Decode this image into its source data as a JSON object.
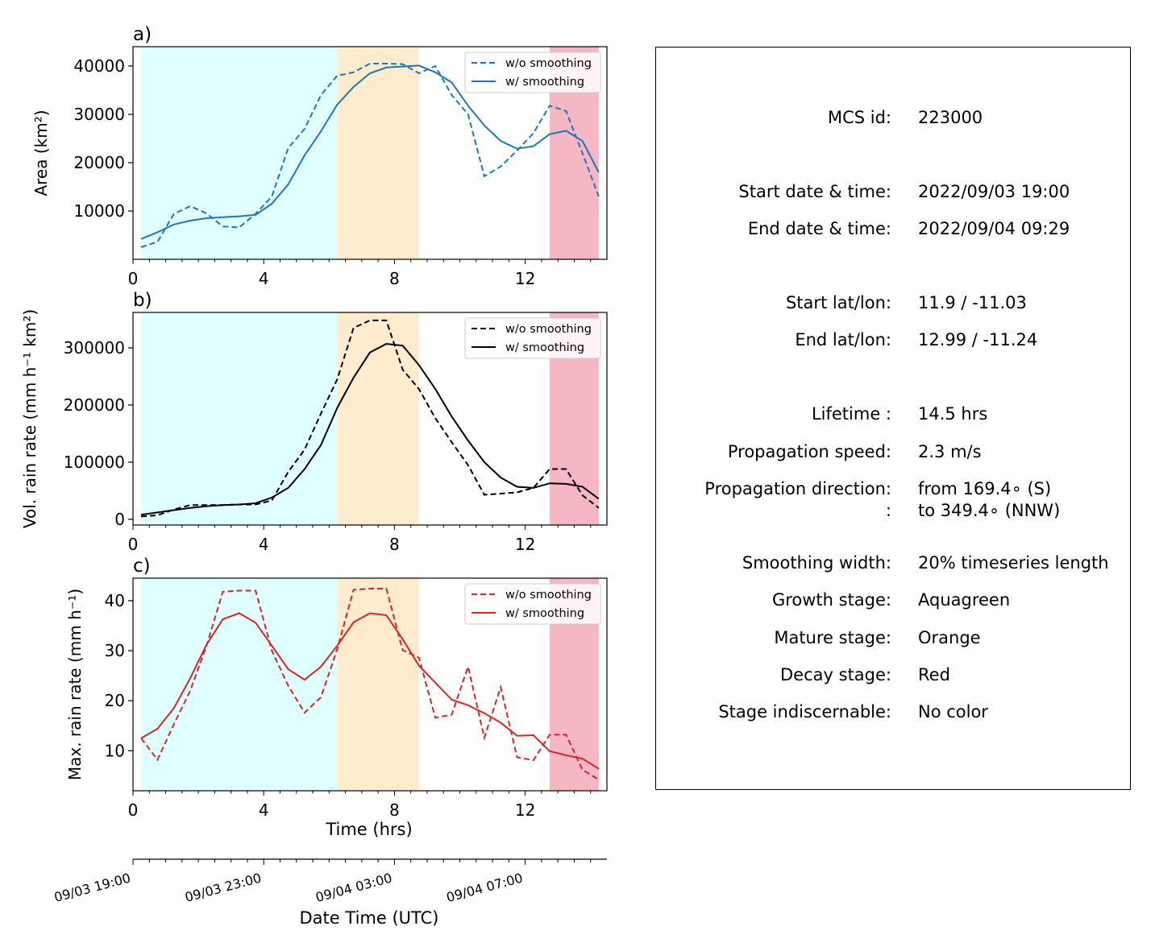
{
  "panels": [
    {
      "label": "a)",
      "ylabel_html": "Area  (km²)",
      "ylim": [
        0,
        44000
      ],
      "yticks": [
        10000,
        20000,
        30000,
        40000
      ],
      "line_color": "#1f77b4",
      "legend": [
        "w/o smoothing",
        "w/ smoothing"
      ],
      "raw": [
        2500,
        3600,
        9400,
        11000,
        9500,
        6800,
        6600,
        9400,
        13000,
        23000,
        27000,
        34000,
        38000,
        38700,
        40500,
        40500,
        40400,
        38500,
        40000,
        34000,
        30000,
        17200,
        19200,
        22500,
        26100,
        31800,
        30700,
        22000,
        13000
      ],
      "smooth": [
        4200,
        5600,
        7200,
        8000,
        8500,
        8700,
        8900,
        9200,
        11500,
        15500,
        21500,
        26500,
        32000,
        35700,
        38500,
        39700,
        39900,
        40100,
        38700,
        36600,
        31800,
        27700,
        24500,
        22900,
        23400,
        25900,
        26600,
        24500,
        18000
      ]
    },
    {
      "label": "b)",
      "ylabel_html": "Vol. rain rate (mm h⁻¹ km²)",
      "ylim": [
        -10000,
        362000
      ],
      "yticks": [
        0,
        100000,
        200000,
        300000
      ],
      "line_color": "#000000",
      "legend": [
        "w/o smoothing",
        "w/ smoothing"
      ],
      "raw": [
        5000,
        7000,
        17000,
        25000,
        25000,
        25000,
        26000,
        26000,
        33000,
        83000,
        122000,
        185000,
        245000,
        335000,
        348000,
        348000,
        262000,
        228000,
        177000,
        135000,
        95000,
        43000,
        45000,
        47000,
        55000,
        88000,
        88000,
        42000,
        20000
      ],
      "smooth": [
        8000,
        12000,
        16000,
        20000,
        23000,
        25000,
        26000,
        28000,
        38000,
        55000,
        88000,
        130000,
        195000,
        248000,
        292000,
        307000,
        304000,
        270000,
        228000,
        180000,
        138000,
        100000,
        73000,
        57000,
        55000,
        63000,
        62000,
        57000,
        36000
      ]
    },
    {
      "label": "c)",
      "ylabel_html": "Max. rain rate  (mm h⁻¹)",
      "ylim": [
        2,
        44.5
      ],
      "yticks": [
        10,
        20,
        30,
        40
      ],
      "line_color": "#d62728",
      "legend": [
        "w/o smoothing",
        "w/ smoothing"
      ],
      "raw": [
        12.5,
        8.2,
        15.3,
        22.0,
        31.0,
        41.8,
        42.0,
        42.0,
        30.0,
        23.0,
        17.6,
        20.7,
        30.3,
        42.2,
        42.4,
        42.4,
        30.1,
        28.6,
        16.6,
        17.2,
        26.8,
        12.6,
        22.7,
        8.7,
        8.1,
        13.2,
        13.2,
        6.2,
        4.2
      ],
      "smooth": [
        12.5,
        14.4,
        18.5,
        24.5,
        31.2,
        36.3,
        37.5,
        35.6,
        31.0,
        26.3,
        24.2,
        26.8,
        31.0,
        35.7,
        37.5,
        37.1,
        32.3,
        27.0,
        23.6,
        20.2,
        19.1,
        17.5,
        15.6,
        13.0,
        13.1,
        9.9,
        9.1,
        8.4,
        6.4
      ]
    }
  ],
  "time_hours": [
    0.25,
    0.75,
    1.25,
    1.75,
    2.25,
    2.75,
    3.25,
    3.75,
    4.25,
    4.75,
    5.25,
    5.75,
    6.25,
    6.75,
    7.25,
    7.75,
    8.25,
    8.75,
    9.25,
    9.75,
    10.25,
    10.75,
    11.25,
    11.75,
    12.25,
    12.75,
    13.25,
    13.75,
    14.25
  ],
  "xlim": [
    0,
    14.5
  ],
  "xticks": [
    0,
    4,
    8,
    12
  ],
  "xtick_labels": [
    "0",
    "4",
    "8",
    "12"
  ],
  "stages": [
    {
      "name": "growth",
      "from": 0.25,
      "to": 6.25,
      "color": "#e0ffff"
    },
    {
      "name": "mature",
      "from": 6.25,
      "to": 8.75,
      "color": "#ffebcd"
    },
    {
      "name": "decay",
      "from": 12.75,
      "to": 14.25,
      "color": "#f4b7c3"
    }
  ],
  "xlabel": "Time (hrs)",
  "date_axis": {
    "tick_labels": [
      "09/03 19:00",
      "09/03 23:00",
      "09/04 03:00",
      "09/04 07:00"
    ],
    "major_hours": [
      0,
      4,
      8,
      12
    ],
    "xlabel": "Date Time (UTC)"
  },
  "info": {
    "rows": [
      {
        "key": "MCS id:",
        "value": "223000"
      },
      {
        "key": "Start date & time:",
        "value": "2022/09/03 19:00"
      },
      {
        "key": "End date & time:",
        "value": "2022/09/04 09:29"
      },
      {
        "key": "Start lat/lon:",
        "value": "11.9 / -11.03"
      },
      {
        "key": "End lat/lon:",
        "value": "12.99 / -11.24"
      },
      {
        "key": "Lifetime :",
        "value": "14.5 hrs"
      },
      {
        "key": "Propagation speed:",
        "value": "2.3 m/s"
      },
      {
        "key": "Propagation direction:",
        "value": "from 169.4∘ (S)"
      },
      {
        "key": ":",
        "value": "to   349.4∘ (NNW)"
      },
      {
        "key": "Smoothing width:",
        "value": "20% timeseries length"
      },
      {
        "key": "Growth stage:",
        "value": "Aquagreen"
      },
      {
        "key": "Mature stage:",
        "value": "Orange"
      },
      {
        "key": "Decay stage:",
        "value": "Red"
      },
      {
        "key": "Stage indiscernable:",
        "value": "No color"
      }
    ]
  },
  "chart_data": [
    {
      "type": "line",
      "panel": "a)",
      "ylabel": "Area  (km2)",
      "xlabel": "",
      "xlim": [
        0,
        14.5
      ],
      "ylim": [
        0,
        44000
      ],
      "series": [
        {
          "name": "w/o smoothing",
          "style": "dashed"
        },
        {
          "name": "w/ smoothing",
          "style": "solid"
        }
      ]
    },
    {
      "type": "line",
      "panel": "b)",
      "ylabel": "Vol. rain rate (mm h-1 km2)",
      "xlabel": "",
      "xlim": [
        0,
        14.5
      ],
      "ylim": [
        -10000,
        362000
      ],
      "series": [
        {
          "name": "w/o smoothing",
          "style": "dashed"
        },
        {
          "name": "w/ smoothing",
          "style": "solid"
        }
      ]
    },
    {
      "type": "line",
      "panel": "c)",
      "ylabel": "Max. rain rate  (mm h-1)",
      "xlabel": "Time (hrs)",
      "xlim": [
        0,
        14.5
      ],
      "ylim": [
        2,
        44.5
      ],
      "series": [
        {
          "name": "w/o smoothing",
          "style": "dashed"
        },
        {
          "name": "w/ smoothing",
          "style": "solid"
        }
      ]
    }
  ]
}
